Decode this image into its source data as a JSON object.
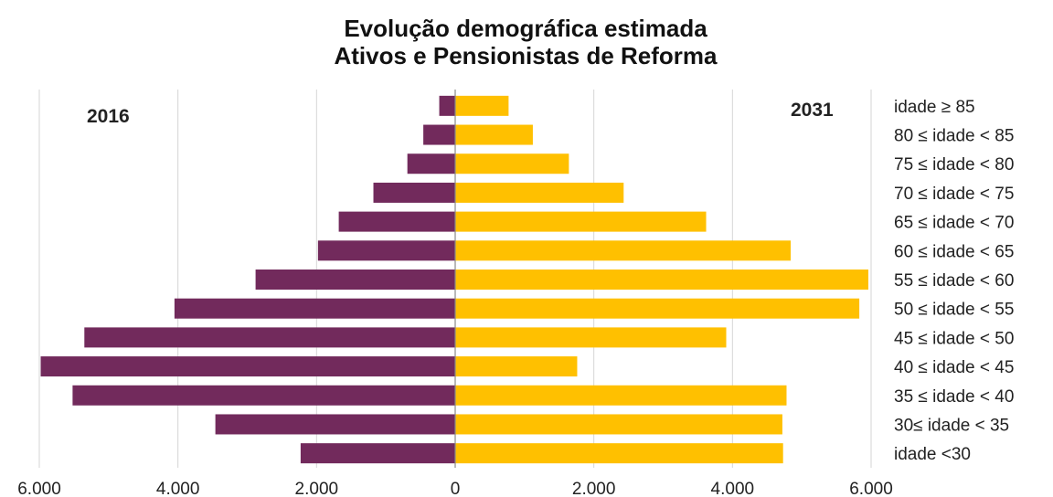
{
  "chart_data": {
    "type": "bar",
    "orientation": "horizontal-diverging",
    "title": "Evolução demográfica estimada",
    "subtitle": "Ativos e Pensionistas de Reforma",
    "categories": [
      "idade ≥ 85",
      "80 ≤ idade < 85",
      "75 ≤ idade < 80",
      "70 ≤ idade < 75",
      "65 ≤ idade < 70",
      "60 ≤ idade < 65",
      "55 ≤ idade < 60",
      "50 ≤ idade < 55",
      "45 ≤ idade < 50",
      "40 ≤ idade < 45",
      "35 ≤ idade < 40",
      "30≤ idade < 35",
      "idade <30"
    ],
    "series": [
      {
        "name": "2016",
        "side": "left",
        "color": "#722A5C",
        "values": [
          230,
          460,
          690,
          1180,
          1680,
          1980,
          2880,
          4050,
          5350,
          5980,
          5520,
          3460,
          2230
        ]
      },
      {
        "name": "2031",
        "side": "right",
        "color": "#FFC000",
        "values": [
          770,
          1120,
          1640,
          2430,
          3620,
          4840,
          5960,
          5830,
          3910,
          1760,
          4780,
          4720,
          4730
        ]
      }
    ],
    "xlim": [
      -6000,
      6000
    ],
    "xticks": [
      -6000,
      -4000,
      -2000,
      0,
      2000,
      4000,
      6000
    ],
    "xtick_labels": [
      "6.000",
      "4.000",
      "2.000",
      "0",
      "2.000",
      "4.000",
      "6.000"
    ],
    "grid": true,
    "category_labels_position": "right"
  }
}
